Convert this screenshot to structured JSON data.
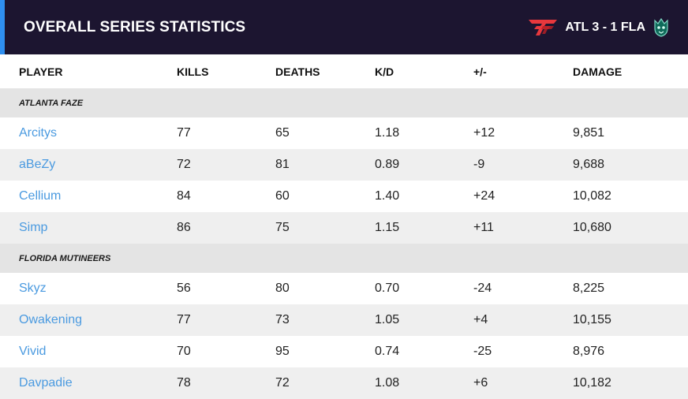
{
  "header": {
    "title": "OVERALL SERIES STATISTICS",
    "score": "ATL 3 - 1 FLA",
    "team1_logo_icon": "atlanta-faze-logo-icon",
    "team2_logo_icon": "florida-mutineers-logo-icon"
  },
  "colors": {
    "accent": "#2f8ff0",
    "positive": "#2e8b2e",
    "negative": "#e0323a",
    "player_link": "#4a9ae0",
    "header_bg": "#1c1530"
  },
  "columns": [
    "PLAYER",
    "KILLS",
    "DEATHS",
    "K/D",
    "+/-",
    "DAMAGE"
  ],
  "groups": [
    {
      "team": "ATLANTA FAZE",
      "players": [
        {
          "name": "Arcitys",
          "kills": "77",
          "deaths": "65",
          "kd": "1.18",
          "pm": "+12",
          "damage": "9,851"
        },
        {
          "name": "aBeZy",
          "kills": "72",
          "deaths": "81",
          "kd": "0.89",
          "pm": "-9",
          "damage": "9,688"
        },
        {
          "name": "Cellium",
          "kills": "84",
          "deaths": "60",
          "kd": "1.40",
          "pm": "+24",
          "damage": "10,082"
        },
        {
          "name": "Simp",
          "kills": "86",
          "deaths": "75",
          "kd": "1.15",
          "pm": "+11",
          "damage": "10,680"
        }
      ]
    },
    {
      "team": "FLORIDA MUTINEERS",
      "players": [
        {
          "name": "Skyz",
          "kills": "56",
          "deaths": "80",
          "kd": "0.70",
          "pm": "-24",
          "damage": "8,225"
        },
        {
          "name": "Owakening",
          "kills": "77",
          "deaths": "73",
          "kd": "1.05",
          "pm": "+4",
          "damage": "10,155"
        },
        {
          "name": "Vivid",
          "kills": "70",
          "deaths": "95",
          "kd": "0.74",
          "pm": "-25",
          "damage": "8,976"
        },
        {
          "name": "Davpadie",
          "kills": "78",
          "deaths": "72",
          "kd": "1.08",
          "pm": "+6",
          "damage": "10,182"
        }
      ]
    }
  ]
}
